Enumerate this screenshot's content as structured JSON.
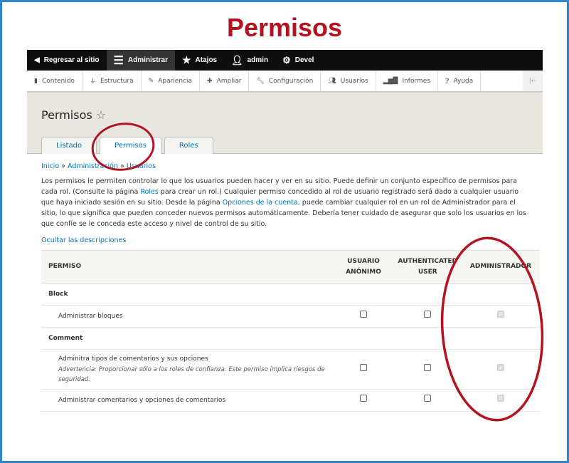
{
  "title": "Permisos",
  "toolbar": {
    "items": [
      {
        "label": "Regresar al sitio",
        "icon": "back-circle-icon"
      },
      {
        "label": "Administrar",
        "icon": "menu-icon"
      },
      {
        "label": "Atajos",
        "icon": "star-icon"
      },
      {
        "label": "admin",
        "icon": "user-icon"
      },
      {
        "label": "Devel",
        "icon": "gear-icon"
      }
    ]
  },
  "tray": {
    "items": [
      {
        "label": "Contenido",
        "icon": "file-icon"
      },
      {
        "label": "Estructura",
        "icon": "sitemap-icon"
      },
      {
        "label": "Apariencia",
        "icon": "brush-icon"
      },
      {
        "label": "Ampliar",
        "icon": "puzzle-icon"
      },
      {
        "label": "Configuración",
        "icon": "wrench-icon"
      },
      {
        "label": "Usuarios",
        "icon": "users-icon"
      },
      {
        "label": "Informes",
        "icon": "bar-chart-icon"
      },
      {
        "label": "Ayuda",
        "icon": "help-icon"
      }
    ]
  },
  "page": {
    "heading": "Permisos",
    "tabs": [
      "Listado",
      "Permisos",
      "Roles"
    ]
  },
  "breadcrumb": [
    "Inicio",
    "Administración",
    "Usuarios"
  ],
  "description": {
    "p1": "Los permisos le permiten controlar lo que los usuarios pueden hacer y ver en su sitio. Puede definir un conjunto específico de permisos para cada rol. (Consulte la página ",
    "roles_link": "Roles",
    "p2": " para crear un rol.) Cualquier permiso concedido al rol de usuario registrado será dado a cualquier usuario que haya iniciado sesión en su sitio. Desde la página ",
    "account_link": "Opciones de la cuenta,",
    "p3": " puede cambiar cualquier rol en un rol de Administrador para el sitio, lo que significa que pueden conceder nuevos permisos automáticamente. Debería tener cuidado de asegurar que solo los usuarios en los que confíe se le conceda este acceso y nivel de control de su sitio."
  },
  "hide_descriptions": "Ocultar las descripciones",
  "table": {
    "headers": [
      "PERMISO",
      "USUARIO ANÓNIMO",
      "AUTHENTICATED USER",
      "ADMINISTRADOR"
    ],
    "groups": [
      {
        "name": "Block",
        "rows": [
          {
            "label": "Administrar bloques",
            "warning": "",
            "values": [
              false,
              false,
              true
            ]
          }
        ]
      },
      {
        "name": "Comment",
        "rows": [
          {
            "label": "Adminitra tipos de comentarios y sus opciones",
            "warning": "Advertencia: Proporcionar sólo a los roles de confianza. Este permiso implica riesgos de seguridad.",
            "values": [
              false,
              false,
              true
            ]
          },
          {
            "label": "Administrar comentarios y opciones de comentarios",
            "warning": "",
            "values": [
              false,
              false,
              true
            ]
          }
        ]
      }
    ]
  },
  "colors": {
    "accent": "#0074bd",
    "annotation": "#b3121f",
    "frame": "#2f86c8"
  }
}
